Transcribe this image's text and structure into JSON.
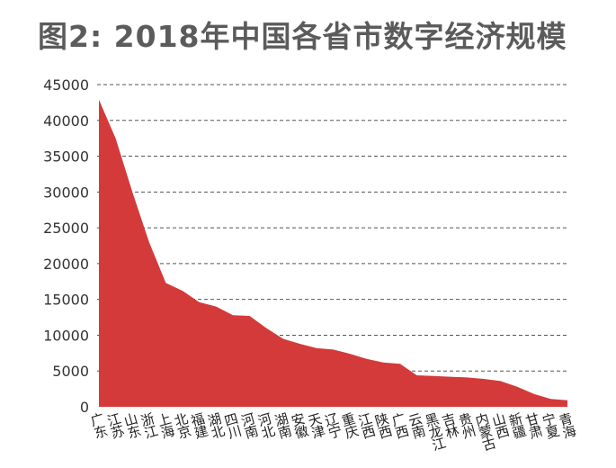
{
  "chart_data": {
    "type": "area",
    "title": "图2: 2018年中国各省市数字经济规模",
    "xlabel": "",
    "ylabel": "",
    "ylim": [
      0,
      45000
    ],
    "yticks": [
      0,
      5000,
      10000,
      15000,
      20000,
      25000,
      30000,
      35000,
      40000,
      45000
    ],
    "grid": "horizontal-dashed",
    "legend": "none",
    "color": "#d43a3a",
    "categories": [
      "广东",
      "江苏",
      "山东",
      "浙江",
      "上海",
      "北京",
      "福建",
      "湖北",
      "四川",
      "河南",
      "河北",
      "湖南",
      "安徽",
      "天津",
      "辽宁",
      "重庆",
      "江西",
      "陕西",
      "广西",
      "云南",
      "黑龙江",
      "吉林",
      "贵州",
      "内蒙古",
      "山西",
      "新疆",
      "甘肃",
      "宁夏",
      "青海"
    ],
    "values": [
      42900,
      37500,
      30000,
      23000,
      17300,
      16200,
      14600,
      14000,
      12800,
      12700,
      11000,
      9500,
      8800,
      8200,
      8000,
      7400,
      6700,
      6200,
      6000,
      4400,
      4300,
      4200,
      4100,
      3900,
      3600,
      2800,
      1800,
      1100,
      900
    ]
  }
}
